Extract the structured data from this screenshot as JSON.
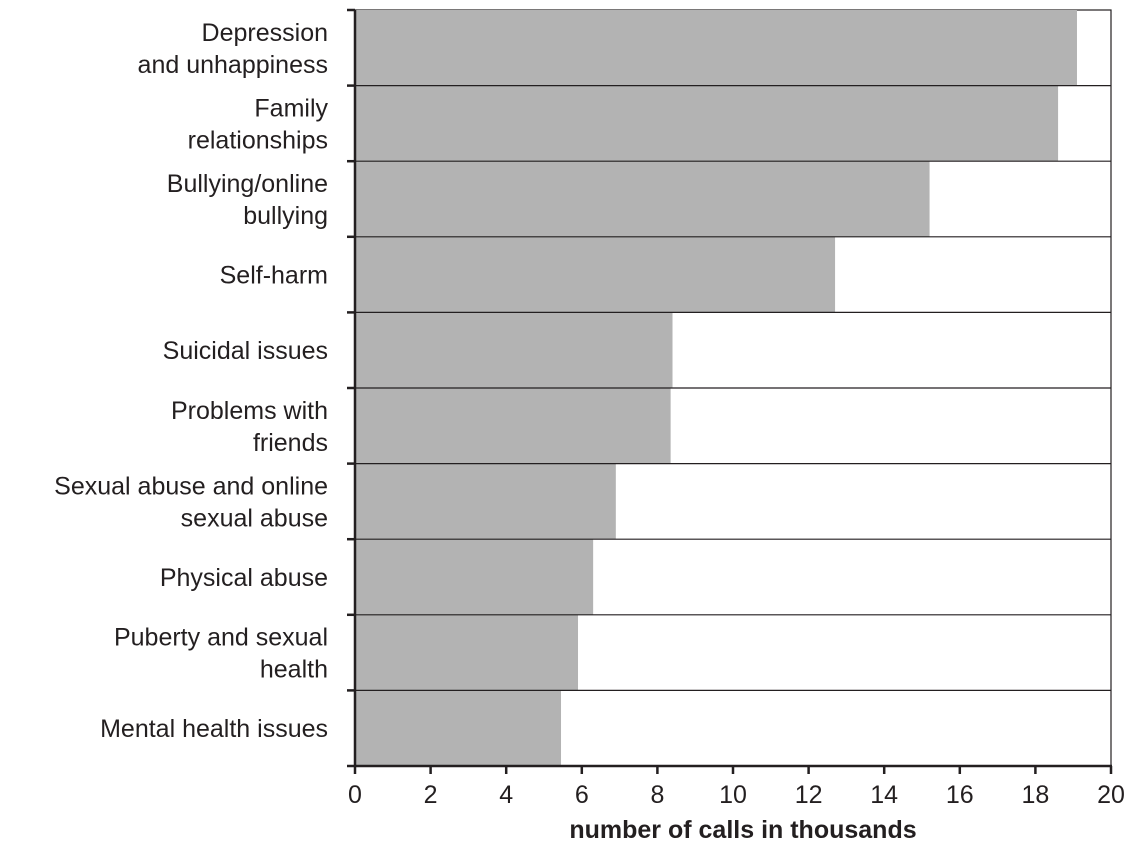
{
  "chart_data": {
    "type": "bar",
    "orientation": "horizontal",
    "title": "",
    "xlabel": "number of calls in thousands",
    "ylabel": "",
    "xlim": [
      0,
      20
    ],
    "x_ticks": [
      0,
      2,
      4,
      6,
      8,
      10,
      12,
      14,
      16,
      18,
      20
    ],
    "grid": false,
    "categories": [
      [
        "Depression",
        "and unhappiness"
      ],
      [
        "Family",
        "relationships"
      ],
      [
        "Bullying/online",
        "bullying"
      ],
      [
        "Self-harm"
      ],
      [
        "Suicidal issues"
      ],
      [
        "Problems with",
        "friends"
      ],
      [
        "Sexual abuse and online",
        "sexual abuse"
      ],
      [
        "Physical abuse"
      ],
      [
        "Puberty and sexual",
        "health"
      ],
      [
        "Mental health issues"
      ]
    ],
    "values": [
      19.1,
      18.6,
      15.2,
      12.7,
      8.4,
      8.35,
      6.9,
      6.3,
      5.9,
      5.45
    ],
    "colors": {
      "bar": "#b3b3b3",
      "axis": "#231f20",
      "background": "#ffffff"
    }
  }
}
